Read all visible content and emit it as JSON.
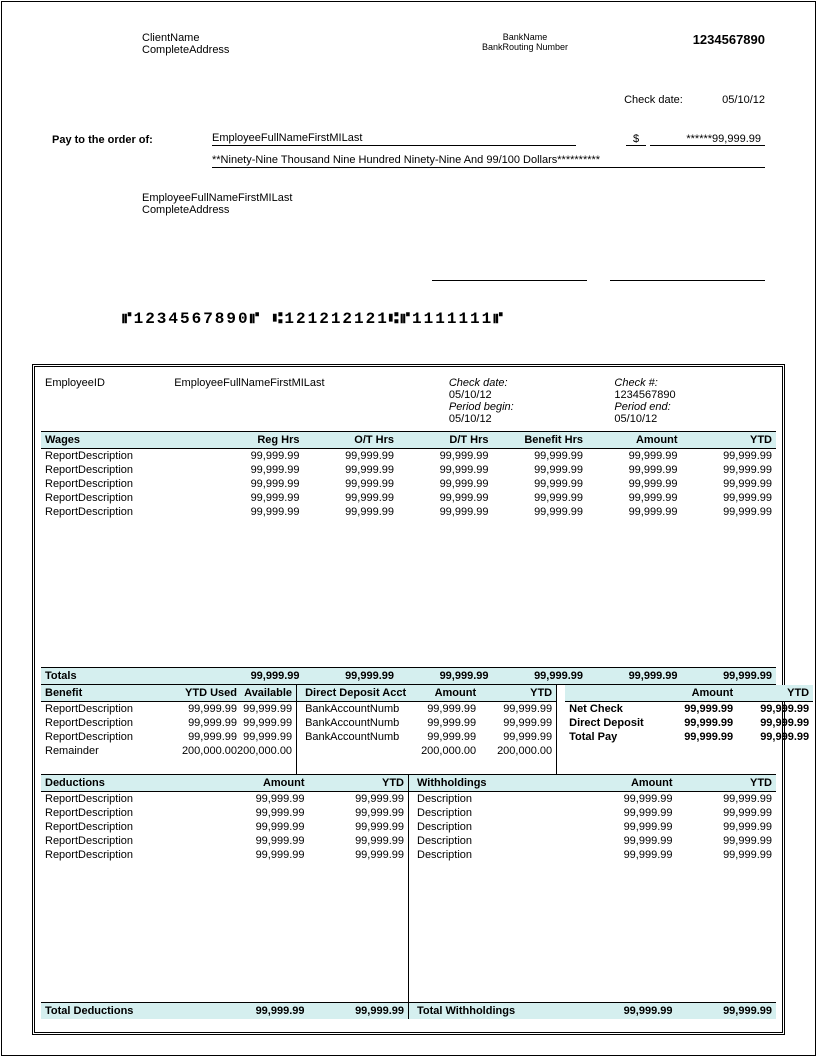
{
  "colors": {
    "header_bg": "#d5efef",
    "border": "#000000",
    "text": "#000000",
    "background": "#ffffff"
  },
  "typography": {
    "base_fontsize": 11,
    "bold_headers": true,
    "font_family": "Arial"
  },
  "check": {
    "client_name": "ClientName",
    "client_address": "CompleteAddress",
    "bank_name": "BankName",
    "bank_routing": "BankRouting Number",
    "check_number": "1234567890",
    "check_date_label": "Check date:",
    "check_date": "05/10/12",
    "pay_order_label": "Pay to the order of:",
    "payee_name": "EmployeeFullNameFirstMILast",
    "dollar_sign": "$",
    "amount": "******99,999.99",
    "amount_words": "**Ninety-Nine Thousand Nine Hundred Ninety-Nine And 99/100 Dollars**********",
    "emp_name": "EmployeeFullNameFirstMILast",
    "emp_address": "CompleteAddress",
    "micr": "⑈1234567890⑈ ⑆121212121⑆⑈1111111⑈"
  },
  "stub": {
    "emp_id_label": "EmployeeID",
    "emp_name": "EmployeeFullNameFirstMILast",
    "check_date_lbl": "Check date:",
    "check_date": "05/10/12",
    "period_begin_lbl": "Period begin:",
    "period_begin": "05/10/12",
    "check_num_lbl": "Check #:",
    "check_num": "1234567890",
    "period_end_lbl": "Period end:",
    "period_end": "05/10/12"
  },
  "wages": {
    "header": [
      "Wages",
      "Reg Hrs",
      "O/T Hrs",
      "D/T Hrs",
      "Benefit Hrs",
      "Amount",
      "YTD"
    ],
    "rows": [
      {
        "desc": "ReportDescription",
        "reg": "99,999.99",
        "ot": "99,999.99",
        "dt": "99,999.99",
        "ben": "99,999.99",
        "amt": "99,999.99",
        "ytd": "99,999.99"
      },
      {
        "desc": "ReportDescription",
        "reg": "99,999.99",
        "ot": "99,999.99",
        "dt": "99,999.99",
        "ben": "99,999.99",
        "amt": "99,999.99",
        "ytd": "99,999.99"
      },
      {
        "desc": "ReportDescription",
        "reg": "99,999.99",
        "ot": "99,999.99",
        "dt": "99,999.99",
        "ben": "99,999.99",
        "amt": "99,999.99",
        "ytd": "99,999.99"
      },
      {
        "desc": "ReportDescription",
        "reg": "99,999.99",
        "ot": "99,999.99",
        "dt": "99,999.99",
        "ben": "99,999.99",
        "amt": "99,999.99",
        "ytd": "99,999.99"
      },
      {
        "desc": "ReportDescription",
        "reg": "99,999.99",
        "ot": "99,999.99",
        "dt": "99,999.99",
        "ben": "99,999.99",
        "amt": "99,999.99",
        "ytd": "99,999.99"
      }
    ],
    "totals_label": "Totals",
    "totals": {
      "reg": "99,999.99",
      "ot": "99,999.99",
      "dt": "99,999.99",
      "ben": "99,999.99",
      "amt": "99,999.99",
      "ytd": "99,999.99"
    }
  },
  "benefit": {
    "header": [
      "Benefit",
      "YTD Used",
      "Available"
    ],
    "rows": [
      {
        "desc": "ReportDescription",
        "used": "99,999.99",
        "avail": "99,999.99"
      },
      {
        "desc": "ReportDescription",
        "used": "99,999.99",
        "avail": "99,999.99"
      },
      {
        "desc": "ReportDescription",
        "used": "99,999.99",
        "avail": "99,999.99"
      },
      {
        "desc": "Remainder",
        "used": "200,000.00",
        "avail": "200,000.00"
      }
    ]
  },
  "dd": {
    "header": [
      "Direct Deposit Acct",
      "Amount",
      "YTD"
    ],
    "rows": [
      {
        "acct": "BankAccountNumb",
        "amt": "99,999.99",
        "ytd": "99,999.99"
      },
      {
        "acct": "BankAccountNumb",
        "amt": "99,999.99",
        "ytd": "99,999.99"
      },
      {
        "acct": "BankAccountNumb",
        "amt": "99,999.99",
        "ytd": "99,999.99"
      },
      {
        "acct": "",
        "amt": "200,000.00",
        "ytd": "200,000.00"
      }
    ]
  },
  "net": {
    "header": [
      "Amount",
      "YTD"
    ],
    "rows": [
      {
        "lbl": "Net Check",
        "amt": "99,999.99",
        "ytd": "99,999.99"
      },
      {
        "lbl": "Direct Deposit",
        "amt": "99,999.99",
        "ytd": "99,999.99"
      },
      {
        "lbl": "Total Pay",
        "amt": "99,999.99",
        "ytd": "99,999.99"
      }
    ]
  },
  "deduct": {
    "header": [
      "Deductions",
      "Amount",
      "YTD"
    ],
    "rows": [
      {
        "desc": "ReportDescription",
        "amt": "99,999.99",
        "ytd": "99,999.99"
      },
      {
        "desc": "ReportDescription",
        "amt": "99,999.99",
        "ytd": "99,999.99"
      },
      {
        "desc": "ReportDescription",
        "amt": "99,999.99",
        "ytd": "99,999.99"
      },
      {
        "desc": "ReportDescription",
        "amt": "99,999.99",
        "ytd": "99,999.99"
      },
      {
        "desc": "ReportDescription",
        "amt": "99,999.99",
        "ytd": "99,999.99"
      }
    ],
    "total_label": "Total Deductions",
    "total_amt": "99,999.99",
    "total_ytd": "99,999.99"
  },
  "withhold": {
    "header": [
      "Withholdings",
      "Amount",
      "YTD"
    ],
    "rows": [
      {
        "desc": "Description",
        "amt": "99,999.99",
        "ytd": "99,999.99"
      },
      {
        "desc": "Description",
        "amt": "99,999.99",
        "ytd": "99,999.99"
      },
      {
        "desc": "Description",
        "amt": "99,999.99",
        "ytd": "99,999.99"
      },
      {
        "desc": "Description",
        "amt": "99,999.99",
        "ytd": "99,999.99"
      },
      {
        "desc": "Description",
        "amt": "99,999.99",
        "ytd": "99,999.99"
      }
    ],
    "total_label": "Total Withholdings",
    "total_amt": "99,999.99",
    "total_ytd": "99,999.99"
  }
}
